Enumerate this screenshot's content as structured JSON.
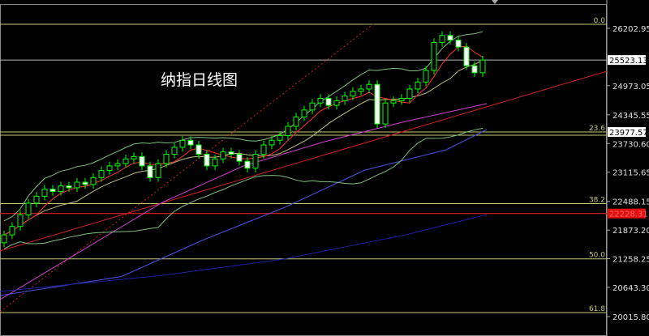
{
  "chart_data": {
    "type": "candlestick",
    "title": "纳指日线图",
    "y_ticks": [
      "26202.95",
      "24973.05",
      "24345.55",
      "23730.60",
      "23115.65",
      "22488.15",
      "21873.20",
      "21258.25",
      "20643.30",
      "20015.80"
    ],
    "y_tick_values": [
      26202.95,
      24973.05,
      24345.55,
      23730.6,
      23115.65,
      22488.15,
      21873.2,
      21258.25,
      20643.3,
      20015.8
    ],
    "ylim": [
      19950,
      26420
    ],
    "current_price_label": "25523.13",
    "current_price": 25523.13,
    "marker_label": "23977.57",
    "marker_price": 23977.57,
    "red_line_label": "22228.31",
    "red_line_price": 22228.31,
    "fib_levels": [
      {
        "label": "0.0",
        "price": 26290
      },
      {
        "label": "23.6",
        "price": 23977.57
      },
      {
        "label": "38.2",
        "price": 22440
      },
      {
        "label": "50.0",
        "price": 21255
      },
      {
        "label": "61.8",
        "price": 20100
      }
    ],
    "candles": {
      "open": [
        21600,
        21770,
        21950,
        22200,
        22450,
        22600,
        22750,
        22700,
        22820,
        22780,
        22900,
        22850,
        23000,
        23150,
        23250,
        23300,
        23400,
        23450,
        23250,
        23000,
        23300,
        23500,
        23650,
        23800,
        23700,
        23500,
        23250,
        23400,
        23550,
        23500,
        23350,
        23200,
        23500,
        23700,
        23800,
        23900,
        24100,
        24300,
        24450,
        24600,
        24700,
        24550,
        24650,
        24750,
        24850,
        24900,
        25000,
        24150,
        24600,
        24650,
        24700,
        24900,
        25050,
        25300,
        25900,
        26050,
        25950,
        25800,
        25400,
        25250
      ],
      "close": [
        21770,
        21950,
        22200,
        22450,
        22600,
        22750,
        22700,
        22820,
        22780,
        22900,
        22850,
        23000,
        23150,
        23250,
        23300,
        23400,
        23450,
        23250,
        23000,
        23300,
        23500,
        23650,
        23800,
        23700,
        23500,
        23250,
        23400,
        23550,
        23500,
        23350,
        23200,
        23500,
        23700,
        23800,
        23900,
        24100,
        24300,
        24450,
        24600,
        24700,
        24550,
        24650,
        24750,
        24850,
        24900,
        25000,
        24150,
        24600,
        24650,
        24700,
        24900,
        25050,
        25300,
        25900,
        26050,
        25950,
        25800,
        25400,
        25250,
        25523.13
      ]
    },
    "lines": [
      {
        "color": "#d02020",
        "style": "solid",
        "points": [
          [
            -0.5,
            21423
          ],
          [
            74.3,
            25282
          ]
        ]
      },
      {
        "color": "#d02020",
        "style": "dotted",
        "points": [
          [
            -0.5,
            20120
          ],
          [
            45.5,
            26290
          ]
        ]
      },
      {
        "color": "#d040d0",
        "style": "solid",
        "points": [
          [
            -0.5,
            20380
          ],
          [
            9.5,
            21423
          ],
          [
            19.5,
            22466
          ],
          [
            29.5,
            23248
          ],
          [
            39.5,
            23770
          ],
          [
            49.5,
            24204
          ],
          [
            59.5,
            24586
          ]
        ]
      },
      {
        "color": "#5050e0",
        "style": "solid",
        "points": [
          [
            -0.5,
            20467
          ],
          [
            14.5,
            20876
          ],
          [
            24.5,
            21658
          ],
          [
            34.5,
            22353
          ],
          [
            44.5,
            23161
          ],
          [
            54.5,
            23596
          ],
          [
            59.5,
            24030
          ]
        ]
      },
      {
        "color": "#2020a0",
        "style": "solid",
        "points": [
          [
            -0.5,
            20554
          ],
          [
            19.5,
            20900
          ],
          [
            34.5,
            21250
          ],
          [
            49.5,
            21770
          ],
          [
            59.5,
            22205
          ]
        ]
      }
    ],
    "colors": {
      "up": "#ffffff",
      "down": "#ffffff",
      "candle_outline": "#00ff00",
      "ma_fast": "#ff3030",
      "ma_mid": "#c0c080",
      "bands": "#80c080",
      "fib": "#c8c87a",
      "grid": "#000000"
    }
  }
}
